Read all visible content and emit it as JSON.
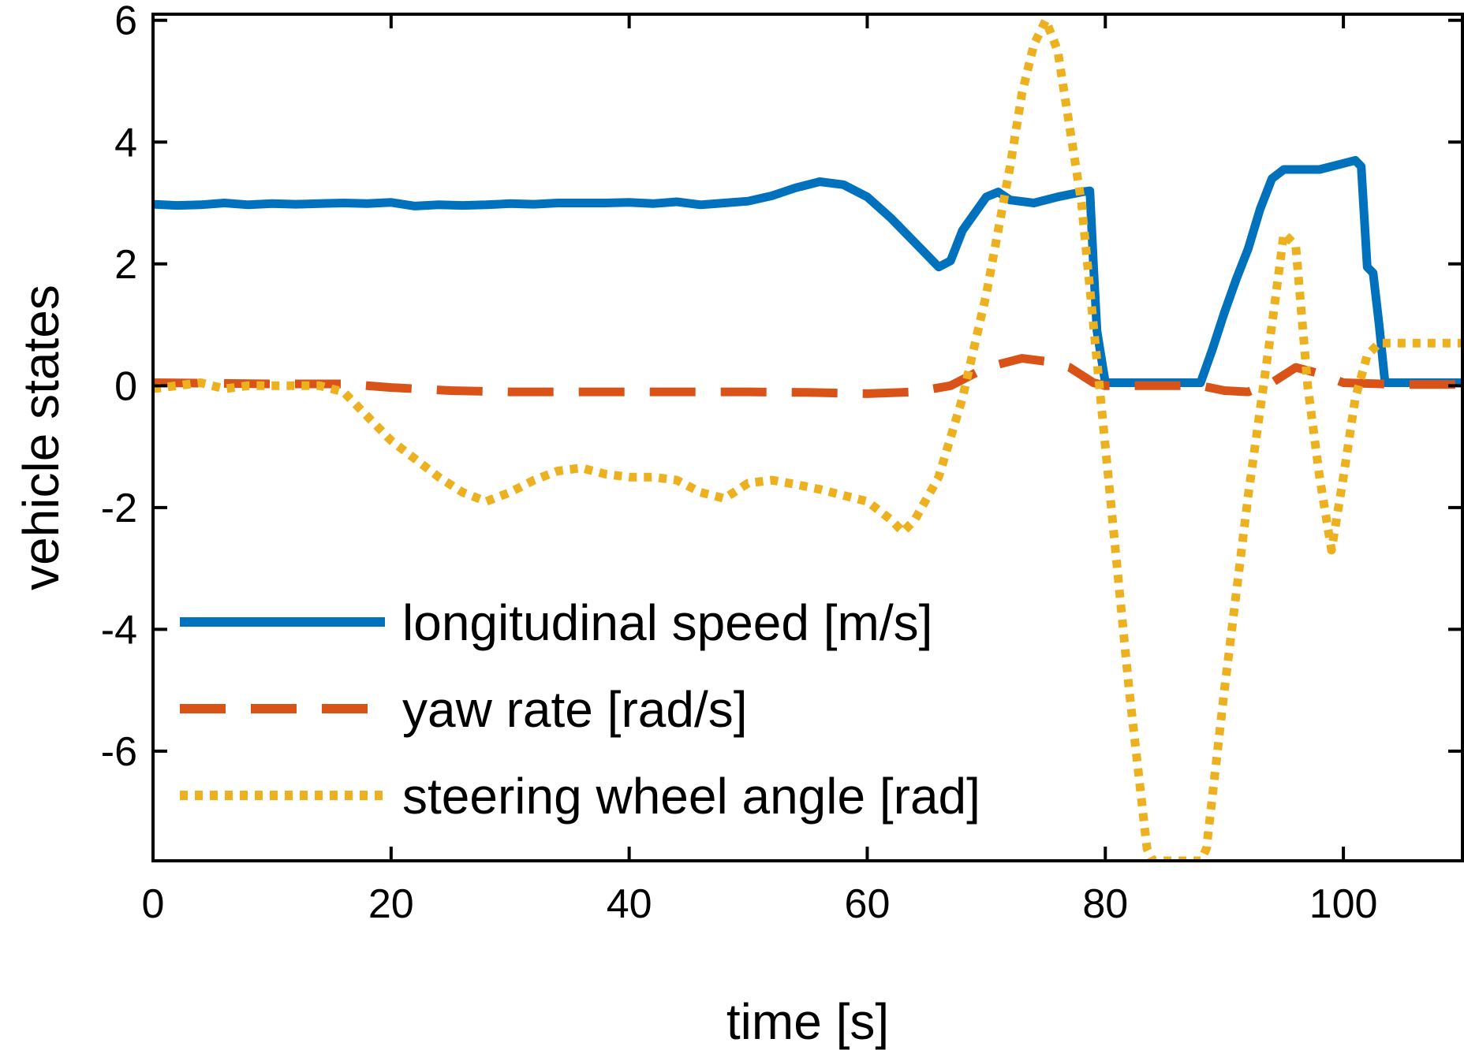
{
  "chart_data": {
    "type": "line",
    "title": "",
    "xlabel": "time [s]",
    "ylabel": "vehicle states",
    "xlim": [
      0,
      110
    ],
    "ylim": [
      -7.8,
      6.1
    ],
    "x_ticks": [
      0,
      20,
      40,
      60,
      80,
      100
    ],
    "y_ticks": [
      -6,
      -4,
      -2,
      0,
      2,
      4,
      6
    ],
    "grid": false,
    "legend_position": "bottom-left",
    "series": [
      {
        "name": "longitudinal speed [m/s]",
        "color": "#0072BD",
        "style": "solid",
        "x": [
          0,
          2,
          4,
          6,
          8,
          10,
          12,
          14,
          16,
          18,
          20,
          22,
          24,
          26,
          28,
          30,
          32,
          34,
          36,
          38,
          40,
          42,
          44,
          46,
          48,
          50,
          52,
          54,
          56,
          58,
          60,
          62,
          64,
          66,
          67,
          68,
          70,
          71,
          72,
          74,
          76,
          78,
          78.7,
          79,
          79.3,
          80,
          84,
          88,
          89,
          90,
          91,
          92,
          93,
          94,
          95,
          96,
          98,
          100,
          101,
          101.5,
          102,
          102.5,
          103,
          103.5,
          105,
          110
        ],
        "values": [
          2.98,
          2.96,
          2.97,
          3.0,
          2.97,
          2.99,
          2.98,
          2.99,
          3.0,
          2.99,
          3.01,
          2.95,
          2.97,
          2.96,
          2.97,
          2.99,
          2.98,
          3.0,
          3.0,
          3.0,
          3.01,
          2.99,
          3.02,
          2.97,
          3.0,
          3.03,
          3.12,
          3.25,
          3.35,
          3.3,
          3.1,
          2.75,
          2.35,
          1.95,
          2.05,
          2.55,
          3.1,
          3.18,
          3.05,
          3.0,
          3.1,
          3.18,
          3.2,
          2.0,
          0.9,
          0.05,
          0.05,
          0.05,
          0.6,
          1.2,
          1.75,
          2.25,
          2.9,
          3.4,
          3.55,
          3.55,
          3.55,
          3.65,
          3.7,
          3.6,
          1.95,
          1.85,
          1.0,
          0.05,
          0.05,
          0.05
        ]
      },
      {
        "name": "yaw rate [rad/s]",
        "color": "#D95319",
        "style": "dashed",
        "x": [
          0,
          5,
          10,
          16,
          20,
          25,
          30,
          35,
          40,
          45,
          50,
          55,
          60,
          64,
          67,
          70,
          73,
          75,
          77,
          79,
          80,
          85,
          88,
          90,
          92,
          94,
          96,
          98,
          100,
          105,
          110
        ],
        "values": [
          0.05,
          0.04,
          0.03,
          0.03,
          -0.03,
          -0.08,
          -0.1,
          -0.1,
          -0.1,
          -0.1,
          -0.1,
          -0.11,
          -0.13,
          -0.1,
          0.0,
          0.3,
          0.45,
          0.4,
          0.3,
          0.05,
          0.0,
          0.0,
          0.0,
          -0.08,
          -0.1,
          0.05,
          0.3,
          0.2,
          0.05,
          0.02,
          0.02
        ]
      },
      {
        "name": "steering wheel angle [rad]",
        "color": "#EDB120",
        "style": "dotted",
        "x": [
          0,
          2,
          4,
          6,
          8,
          10,
          12,
          14,
          16,
          18,
          20,
          22,
          24,
          26,
          28,
          30,
          32,
          34,
          36,
          38,
          40,
          42,
          44,
          46,
          48,
          50,
          52,
          54,
          56,
          58,
          60,
          62,
          63,
          64,
          66,
          68,
          70,
          72,
          73,
          74,
          75,
          76,
          78,
          80,
          82,
          83.5,
          84,
          86,
          88,
          88.5,
          90,
          92,
          94,
          95,
          96,
          97,
          98,
          99,
          100,
          101,
          102,
          103,
          110
        ],
        "values": [
          -0.05,
          0.0,
          0.05,
          -0.05,
          0.0,
          0.0,
          0.0,
          0.0,
          -0.1,
          -0.5,
          -0.9,
          -1.2,
          -1.5,
          -1.75,
          -1.9,
          -1.75,
          -1.55,
          -1.4,
          -1.35,
          -1.45,
          -1.5,
          -1.5,
          -1.55,
          -1.75,
          -1.85,
          -1.6,
          -1.55,
          -1.62,
          -1.7,
          -1.8,
          -1.9,
          -2.2,
          -2.4,
          -2.2,
          -1.5,
          -0.2,
          1.5,
          3.6,
          4.8,
          5.6,
          6.0,
          5.5,
          3.0,
          -1.0,
          -5.0,
          -7.6,
          -7.8,
          -7.8,
          -7.8,
          -7.6,
          -5.0,
          -1.8,
          1.0,
          2.5,
          2.3,
          0.0,
          -1.5,
          -2.7,
          -1.5,
          -0.2,
          0.5,
          0.7,
          0.7
        ]
      }
    ]
  }
}
